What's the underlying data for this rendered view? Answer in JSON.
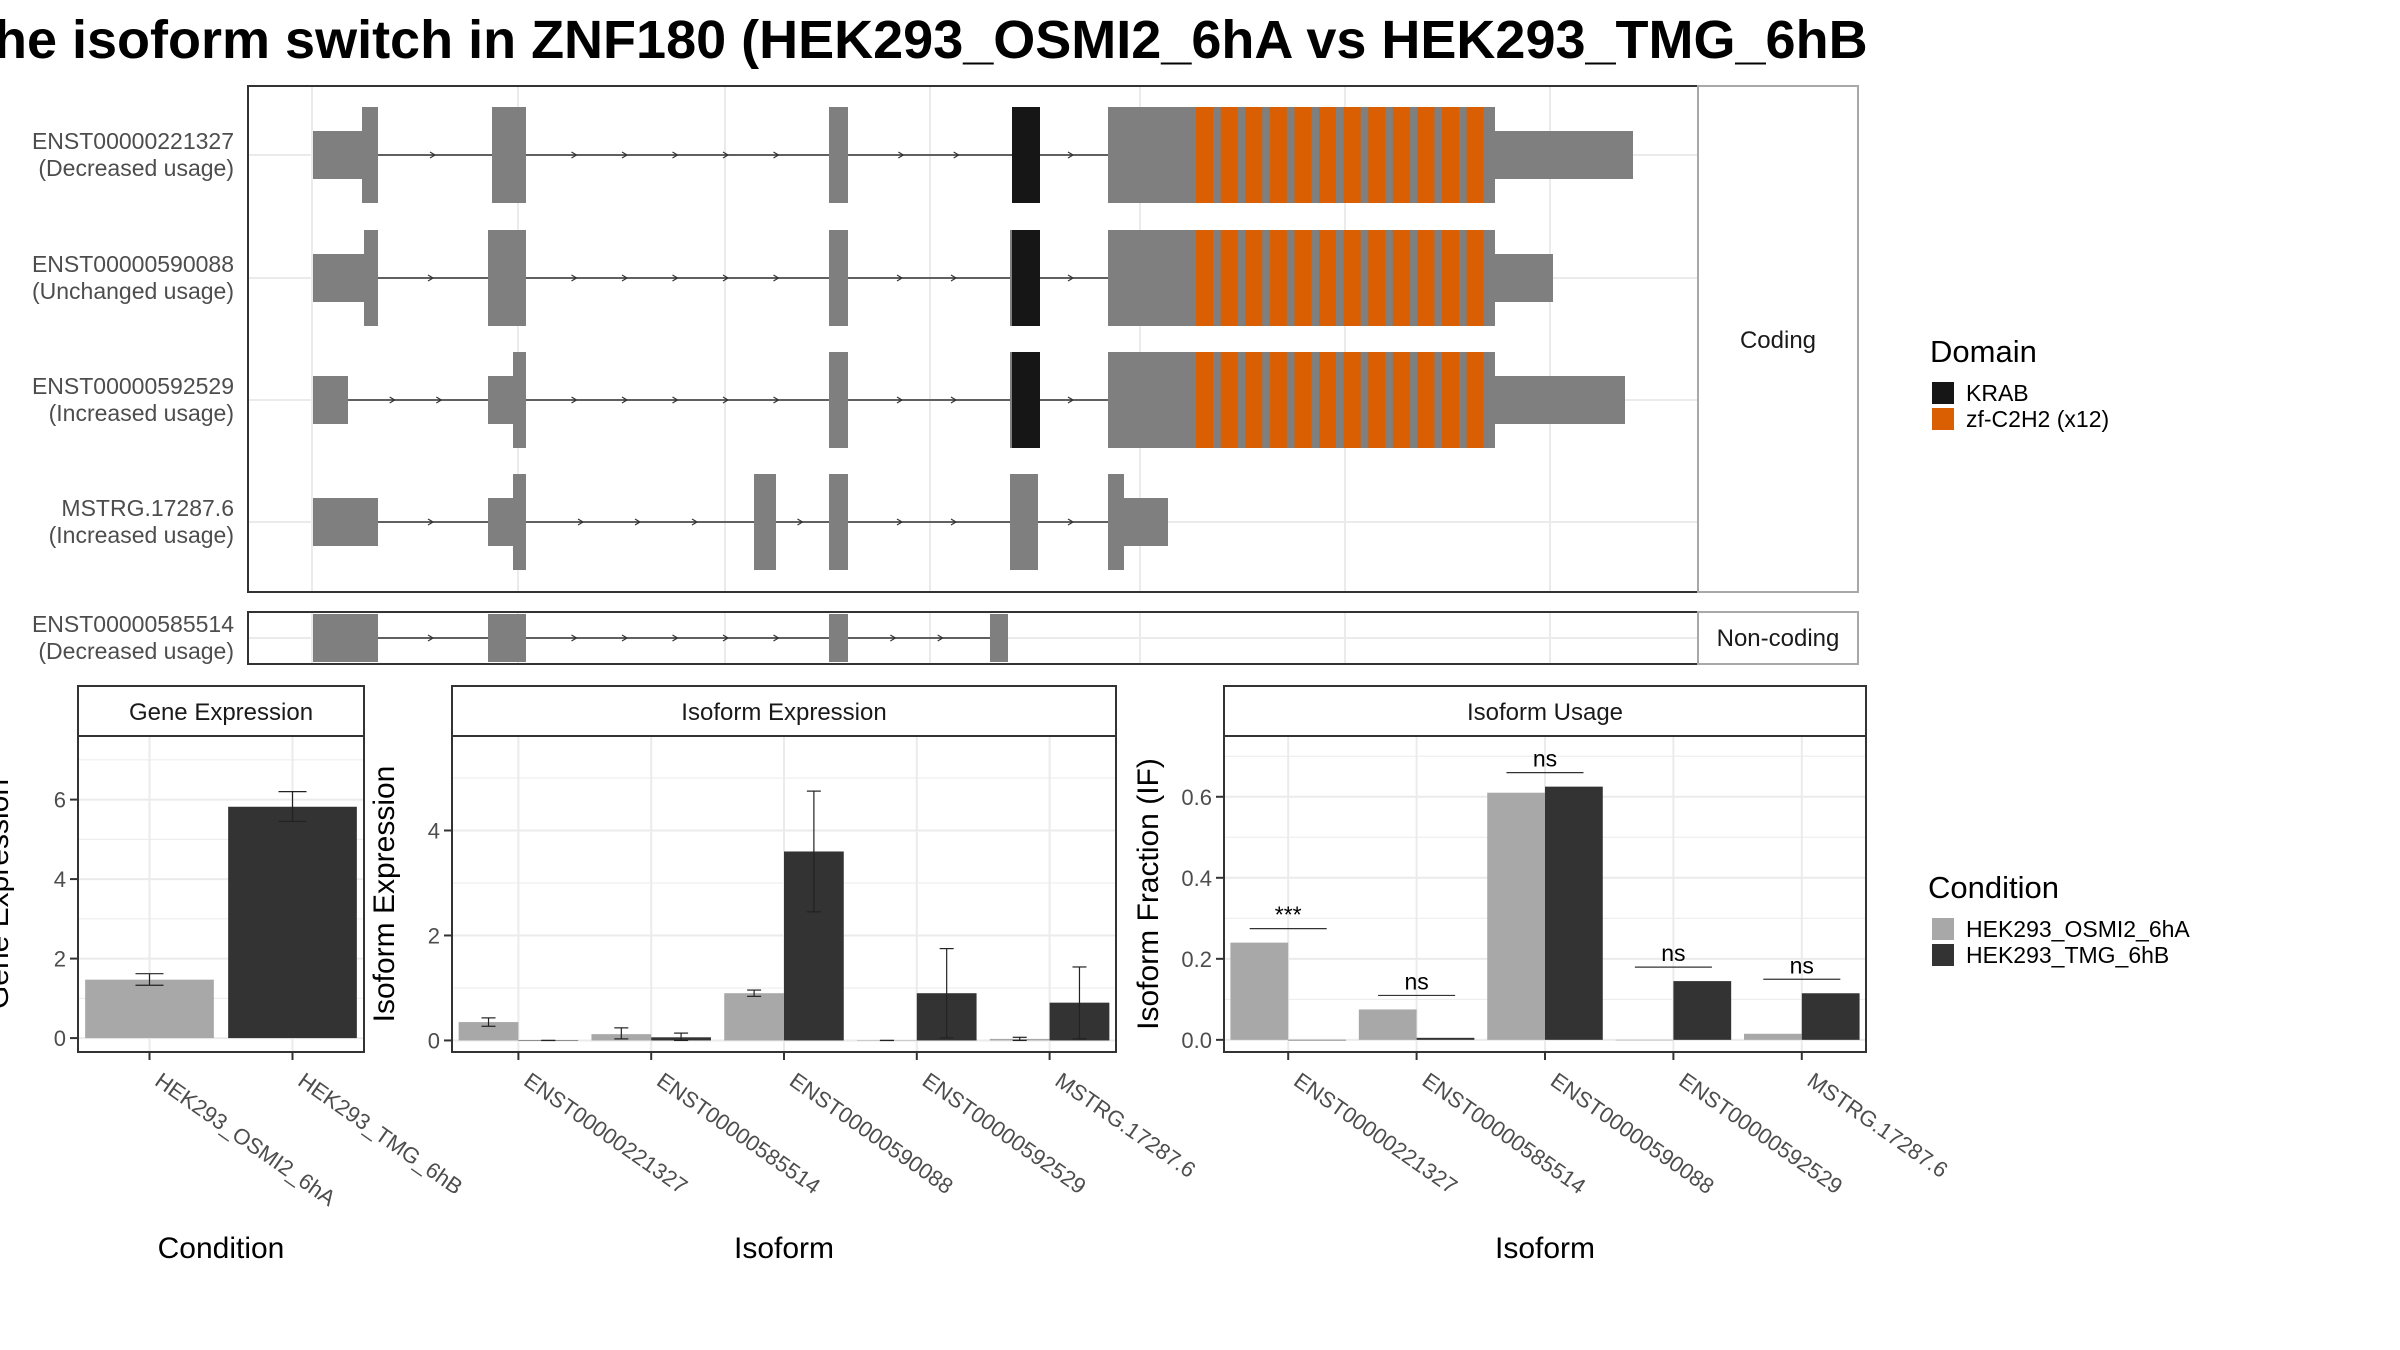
{
  "title": "he isoform switch in ZNF180 (HEK293_OSMI2_6hA vs HEK293_TMG_6hB",
  "colors": {
    "exon": "#7f7f7f",
    "krab": "#161616",
    "zf_c2h2": "#d95f02",
    "cond_a": "#a8a8a8",
    "cond_b": "#333333",
    "panel_border": "#333333",
    "strip_border": "#a8a8a8",
    "grid": "#ebebeb"
  },
  "transcript_panel": {
    "coding_strip": "Coding",
    "noncoding_strip": "Non-coding",
    "transcripts": [
      {
        "id": "ENST00000221327",
        "usage": "(Decreased usage)",
        "group": "coding"
      },
      {
        "id": "ENST00000590088",
        "usage": "(Unchanged usage)",
        "group": "coding"
      },
      {
        "id": "ENST00000592529",
        "usage": "(Increased usage)",
        "group": "coding"
      },
      {
        "id": "MSTRG.17287.6",
        "usage": "(Increased usage)",
        "group": "coding"
      },
      {
        "id": "ENST00000585514",
        "usage": "(Decreased usage)",
        "group": "noncoding"
      }
    ]
  },
  "domain_legend": {
    "title": "Domain",
    "items": [
      {
        "label": "KRAB",
        "color": "#161616"
      },
      {
        "label": "zf-C2H2 (x12)",
        "color": "#d95f02"
      }
    ]
  },
  "condition_legend": {
    "title": "Condition",
    "items": [
      {
        "label": "HEK293_OSMI2_6hA",
        "color": "#a8a8a8"
      },
      {
        "label": "HEK293_TMG_6hB",
        "color": "#333333"
      }
    ]
  },
  "chart_data": [
    {
      "type": "bar",
      "title": "Gene Expression",
      "xlabel": "Condition",
      "ylabel": "Gene Expression",
      "categories": [
        "HEK293_OSMI2_6hA",
        "HEK293_TMG_6hB"
      ],
      "values": [
        1.47,
        5.82
      ],
      "error_low": [
        1.33,
        5.45
      ],
      "error_high": [
        1.62,
        6.2
      ],
      "ylim": [
        -0.35,
        7.6
      ],
      "yticks": [
        0,
        2,
        4,
        6
      ],
      "grid": true
    },
    {
      "type": "bar",
      "title": "Isoform Expression",
      "xlabel": "Isoform",
      "ylabel": "Isoform Expression",
      "categories": [
        "ENST00000221327",
        "ENST00000585514",
        "ENST00000590088",
        "ENST00000592529",
        "MSTRG.17287.6"
      ],
      "series": [
        {
          "name": "HEK293_OSMI2_6hA",
          "values": [
            0.35,
            0.12,
            0.9,
            0.0,
            0.03
          ],
          "error_low": [
            0.27,
            0.03,
            0.84,
            0.0,
            0.0
          ],
          "error_high": [
            0.43,
            0.24,
            0.96,
            0.0,
            0.06
          ]
        },
        {
          "name": "HEK293_TMG_6hB",
          "values": [
            0.0,
            0.06,
            3.6,
            0.9,
            0.72
          ],
          "error_low": [
            0.0,
            0.0,
            2.45,
            0.05,
            0.03
          ],
          "error_high": [
            0.0,
            0.14,
            4.75,
            1.75,
            1.4
          ]
        }
      ],
      "ylim": [
        -0.22,
        5.8
      ],
      "yticks": [
        0,
        2,
        4
      ],
      "grid": true
    },
    {
      "type": "bar",
      "title": "Isoform Usage",
      "xlabel": "Isoform",
      "ylabel": "Isoform Fraction (IF)",
      "categories": [
        "ENST00000221327",
        "ENST00000585514",
        "ENST00000590088",
        "ENST00000592529",
        "MSTRG.17287.6"
      ],
      "series": [
        {
          "name": "HEK293_OSMI2_6hA",
          "values": [
            0.24,
            0.075,
            0.61,
            0.0,
            0.015
          ]
        },
        {
          "name": "HEK293_TMG_6hB",
          "values": [
            0.0,
            0.005,
            0.625,
            0.145,
            0.115
          ]
        }
      ],
      "significance": [
        "***",
        "ns",
        "ns",
        "ns",
        "ns"
      ],
      "ylim": [
        -0.03,
        0.75
      ],
      "yticks": [
        0.0,
        0.2,
        0.4,
        0.6
      ],
      "grid": true
    }
  ]
}
